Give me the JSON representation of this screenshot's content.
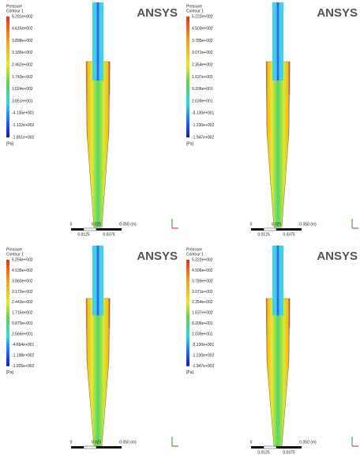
{
  "logo": "ANSYS",
  "panels": [
    {
      "legend_title": "Pressure",
      "legend_subtitle": "Contour 1",
      "levels": [
        "5.201e+002",
        "4.615e+002",
        "3.898e+002",
        "3.180e+002",
        "2.462e+002",
        "1.743e+002",
        "1.024e+002",
        "3.051e+001",
        "-4.135e+001",
        "-1.132e+002",
        "-1.851e+002"
      ],
      "unit": "[Pa]",
      "scale_labels": [
        "0",
        "0.025",
        "0.050 (m)",
        "0.0125",
        "0.0375"
      ]
    },
    {
      "legend_title": "Pressure",
      "legend_subtitle": "Contour 1",
      "levels": [
        "5.222e+002",
        "4.503e+002",
        "3.785e+002",
        "3.071e+002",
        "2.354e+002",
        "1.637e+002",
        "9.206e+001",
        "2.039e+001",
        "-5.130e+001",
        "-1.230e+002",
        "-1.947e+002"
      ],
      "unit": "[Pa]",
      "scale_labels": [
        "0",
        "0.025",
        "0.050 (m)",
        "0.0125",
        "0.0375"
      ]
    },
    {
      "legend_title": "Pressure",
      "legend_subtitle": "Contour 1",
      "levels": [
        "5.256e+002",
        "4.535e+002",
        "3.860e+002",
        "3.172e+002",
        "2.443e+002",
        "1.715e+002",
        "9.870e+001",
        "2.566e+001",
        "-4.694e+001",
        "-1.198e+002",
        "-1.926e+002"
      ],
      "unit": "[Pa]",
      "scale_labels": [
        "0",
        "0.025",
        "0.050 (m)"
      ]
    },
    {
      "legend_title": "Pressure",
      "legend_subtitle": "Contour 1",
      "levels": [
        "5.222e+002",
        "4.506e+002",
        "3.789e+002",
        "3.071e+002",
        "2.354e+002",
        "1.637e+002",
        "9.206e+001",
        "2.039e+001",
        "-5.130e+001",
        "-1.230e+002",
        "-1.947e+002"
      ],
      "unit": "[Pa]",
      "scale_labels": [
        "0",
        "0.050 (m)",
        "0.0125",
        "0.0375"
      ]
    }
  ]
}
